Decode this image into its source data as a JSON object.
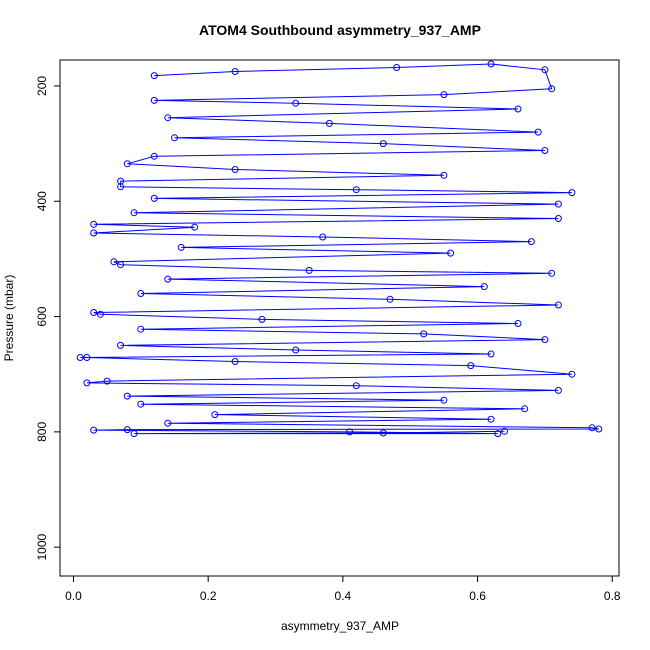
{
  "chart_data": {
    "type": "scatter",
    "title": "ATOM4 Southbound asymmetry_937_AMP",
    "xlabel": "asymmetry_937_AMP",
    "ylabel": "Pressure (mbar)",
    "xlim": [
      -0.02,
      0.81
    ],
    "ylim": [
      1050,
      155
    ],
    "y_reversed": true,
    "x_ticks": [
      0.0,
      0.2,
      0.4,
      0.6,
      0.8
    ],
    "x_tick_labels": [
      "0.0",
      "0.2",
      "0.4",
      "0.6",
      "0.8"
    ],
    "y_ticks": [
      200,
      400,
      600,
      800,
      1000
    ],
    "y_tick_labels": [
      "200",
      "400",
      "600",
      "800",
      "1000"
    ],
    "grid": false,
    "legend": "none",
    "marker": "open-circle",
    "connected_lines": true,
    "series": [
      {
        "color": "#0000ff",
        "points": [
          {
            "x": 0.12,
            "y": 182
          },
          {
            "x": 0.24,
            "y": 175
          },
          {
            "x": 0.48,
            "y": 168
          },
          {
            "x": 0.62,
            "y": 162
          },
          {
            "x": 0.7,
            "y": 172
          },
          {
            "x": 0.71,
            "y": 205
          },
          {
            "x": 0.55,
            "y": 215
          },
          {
            "x": 0.12,
            "y": 225
          },
          {
            "x": 0.33,
            "y": 230
          },
          {
            "x": 0.66,
            "y": 240
          },
          {
            "x": 0.14,
            "y": 255
          },
          {
            "x": 0.38,
            "y": 265
          },
          {
            "x": 0.69,
            "y": 280
          },
          {
            "x": 0.15,
            "y": 290
          },
          {
            "x": 0.46,
            "y": 300
          },
          {
            "x": 0.7,
            "y": 312
          },
          {
            "x": 0.12,
            "y": 322
          },
          {
            "x": 0.08,
            "y": 335
          },
          {
            "x": 0.24,
            "y": 345
          },
          {
            "x": 0.55,
            "y": 355
          },
          {
            "x": 0.07,
            "y": 365
          },
          {
            "x": 0.07,
            "y": 375
          },
          {
            "x": 0.42,
            "y": 380
          },
          {
            "x": 0.74,
            "y": 385
          },
          {
            "x": 0.12,
            "y": 395
          },
          {
            "x": 0.72,
            "y": 405
          },
          {
            "x": 0.09,
            "y": 420
          },
          {
            "x": 0.72,
            "y": 430
          },
          {
            "x": 0.03,
            "y": 440
          },
          {
            "x": 0.18,
            "y": 445
          },
          {
            "x": 0.03,
            "y": 455
          },
          {
            "x": 0.37,
            "y": 462
          },
          {
            "x": 0.68,
            "y": 470
          },
          {
            "x": 0.16,
            "y": 480
          },
          {
            "x": 0.56,
            "y": 490
          },
          {
            "x": 0.06,
            "y": 505
          },
          {
            "x": 0.07,
            "y": 510
          },
          {
            "x": 0.35,
            "y": 520
          },
          {
            "x": 0.71,
            "y": 525
          },
          {
            "x": 0.14,
            "y": 535
          },
          {
            "x": 0.61,
            "y": 548
          },
          {
            "x": 0.1,
            "y": 560
          },
          {
            "x": 0.47,
            "y": 570
          },
          {
            "x": 0.72,
            "y": 580
          },
          {
            "x": 0.03,
            "y": 593
          },
          {
            "x": 0.04,
            "y": 596
          },
          {
            "x": 0.28,
            "y": 605
          },
          {
            "x": 0.66,
            "y": 612
          },
          {
            "x": 0.1,
            "y": 622
          },
          {
            "x": 0.52,
            "y": 630
          },
          {
            "x": 0.7,
            "y": 640
          },
          {
            "x": 0.07,
            "y": 650
          },
          {
            "x": 0.33,
            "y": 658
          },
          {
            "x": 0.62,
            "y": 665
          },
          {
            "x": 0.01,
            "y": 671
          },
          {
            "x": 0.02,
            "y": 671
          },
          {
            "x": 0.24,
            "y": 678
          },
          {
            "x": 0.59,
            "y": 685
          },
          {
            "x": 0.74,
            "y": 700
          },
          {
            "x": 0.05,
            "y": 712
          },
          {
            "x": 0.02,
            "y": 715
          },
          {
            "x": 0.42,
            "y": 720
          },
          {
            "x": 0.72,
            "y": 728
          },
          {
            "x": 0.08,
            "y": 738
          },
          {
            "x": 0.55,
            "y": 745
          },
          {
            "x": 0.1,
            "y": 752
          },
          {
            "x": 0.67,
            "y": 760
          },
          {
            "x": 0.21,
            "y": 770
          },
          {
            "x": 0.62,
            "y": 778
          },
          {
            "x": 0.14,
            "y": 785
          },
          {
            "x": 0.77,
            "y": 793
          },
          {
            "x": 0.78,
            "y": 795
          },
          {
            "x": 0.08,
            "y": 796
          },
          {
            "x": 0.03,
            "y": 797
          },
          {
            "x": 0.41,
            "y": 800
          },
          {
            "x": 0.63,
            "y": 803
          },
          {
            "x": 0.09,
            "y": 803
          },
          {
            "x": 0.46,
            "y": 802
          },
          {
            "x": 0.64,
            "y": 799
          }
        ]
      }
    ]
  }
}
